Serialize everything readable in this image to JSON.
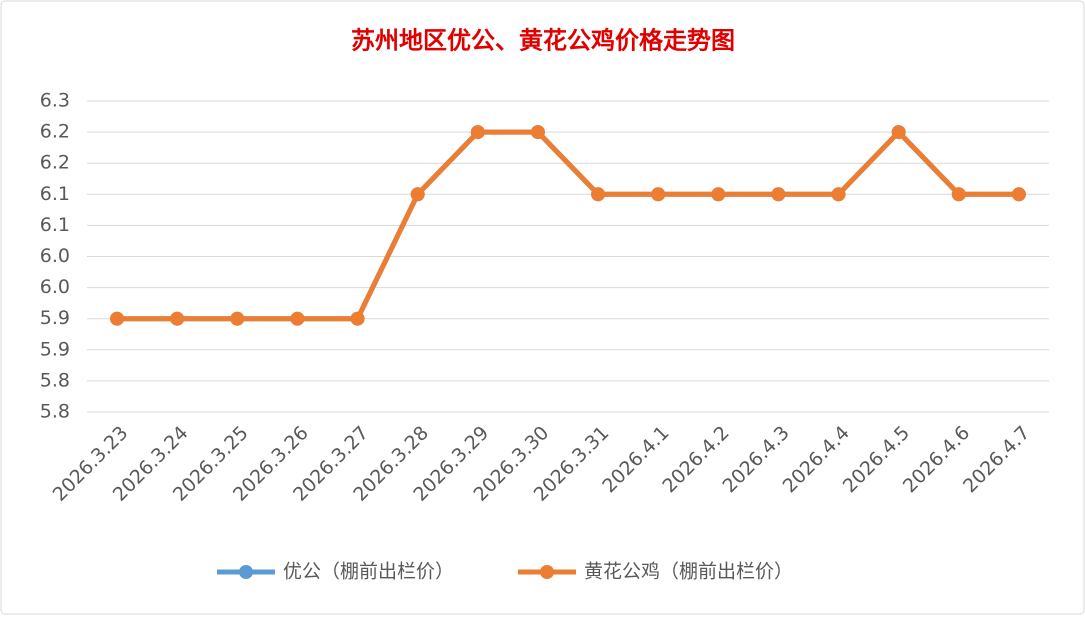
{
  "chart_data": {
    "type": "line",
    "title": "苏州地区优公、黄花公鸡价格走势图",
    "categories": [
      "2026.3.23",
      "2026.3.24",
      "2026.3.25",
      "2026.3.26",
      "2026.3.27",
      "2026.3.28",
      "2026.3.29",
      "2026.3.30",
      "2026.3.31",
      "2026.4.1",
      "2026.4.2",
      "2026.4.3",
      "2026.4.4",
      "2026.4.5",
      "2026.4.6",
      "2026.4.7"
    ],
    "series": [
      {
        "name": "优公（棚前出栏价）",
        "color": "#5b9bd5",
        "values": [
          5.9,
          5.9,
          5.9,
          5.9,
          5.9,
          6.1,
          6.2,
          6.2,
          6.1,
          6.1,
          6.1,
          6.1,
          6.1,
          6.2,
          6.1,
          6.1
        ]
      },
      {
        "name": "黄花公鸡（棚前出栏价）",
        "color": "#ed7d31",
        "values": [
          5.9,
          5.9,
          5.9,
          5.9,
          5.9,
          6.1,
          6.2,
          6.2,
          6.1,
          6.1,
          6.1,
          6.1,
          6.1,
          6.2,
          6.1,
          6.1
        ]
      }
    ],
    "ylim": [
      5.75,
      6.25
    ],
    "yticks": [
      {
        "value": 5.75,
        "label": "5.8"
      },
      5.8,
      {
        "value": 5.85,
        "label": "5.9"
      },
      5.9,
      {
        "value": 5.95,
        "label": "6.0"
      },
      {
        "value": 6.0,
        "label": "6.0"
      },
      {
        "value": 6.05,
        "label": "6.1"
      },
      6.1,
      {
        "value": 6.15,
        "label": "6.2"
      },
      6.2,
      {
        "value": 6.25,
        "label": "6.3"
      }
    ],
    "grid": true,
    "legend": "bottom"
  }
}
